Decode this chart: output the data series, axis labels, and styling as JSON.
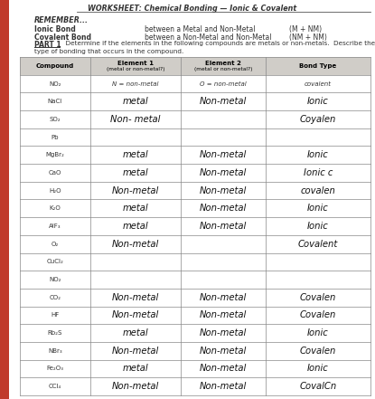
{
  "title": "WORKSHEET: Chemical Bonding — Ionic & Covalent",
  "remember_title": "REMEMBER...",
  "ionic_bond_label": "Ionic Bond",
  "ionic_bond_desc": "between a Metal and Non-Metal",
  "ionic_bond_abbr": "(M + NM)",
  "covalent_bond_label": "Covalent Bond",
  "covalent_bond_desc": "between a Non-Metal and Non-Metal",
  "covalent_bond_abbr": "(NM + NM)",
  "part1_label": "PART 1",
  "part1_rest": "  Determine if the elements in the following compounds are metals or non-metals.  Describe the",
  "part1_line2": "type of bonding that occurs in the compound.",
  "col_headers": [
    "Compound",
    "Element 1\n(metal or non-metal?)",
    "Element 2\n(metal or non-metal?)",
    "Bond Type"
  ],
  "paper_color": "#f5f3ef",
  "red_color": "#c0392b",
  "line_color": "#888888",
  "text_color": "#222222",
  "header_bg": "#d0cdc8",
  "rows": [
    {
      "compound": "NO₂",
      "el1": "N = non-metal",
      "el2": "O = non-metal",
      "bond": "covalent",
      "hw": false
    },
    {
      "compound": "NaCl",
      "el1": "metal",
      "el2": "Non-metal",
      "bond": "Ionic",
      "hw": true
    },
    {
      "compound": "SO₂",
      "el1": "Non- metal",
      "el2": "",
      "bond": "Coyalen",
      "hw": true
    },
    {
      "compound": "Pb",
      "el1": "",
      "el2": "",
      "bond": "",
      "hw": true
    },
    {
      "compound": "MgBr₂",
      "el1": "metal",
      "el2": "Non-metal",
      "bond": "Ionic",
      "hw": true
    },
    {
      "compound": "CaO",
      "el1": "metal",
      "el2": "Non-metal",
      "bond": "Ionic c",
      "hw": true
    },
    {
      "compound": "H₂O",
      "el1": "Non-metal",
      "el2": "Non-metal",
      "bond": "covalen",
      "hw": true
    },
    {
      "compound": "K₂O",
      "el1": "metal",
      "el2": "Non-metal",
      "bond": "Ionic",
      "hw": true
    },
    {
      "compound": "AlF₃",
      "el1": "metal",
      "el2": "Non-metal",
      "bond": "Ionic",
      "hw": true
    },
    {
      "compound": "O₂",
      "el1": "Non-metal",
      "el2": "",
      "bond": "Covalent",
      "hw": true
    },
    {
      "compound": "CuCl₂",
      "el1": "",
      "el2": "",
      "bond": "",
      "hw": true
    },
    {
      "compound": "NO₂",
      "el1": "",
      "el2": "",
      "bond": "",
      "hw": true
    },
    {
      "compound": "CO₂",
      "el1": "Non-metal",
      "el2": "Non-metal",
      "bond": "Covalen",
      "hw": true
    },
    {
      "compound": "HF",
      "el1": "Non-metal",
      "el2": "Non-metal",
      "bond": "Covalen",
      "hw": true
    },
    {
      "compound": "Rb₂S",
      "el1": "metal",
      "el2": "Non-metal",
      "bond": "Ionic",
      "hw": true
    },
    {
      "compound": "NBr₃",
      "el1": "Non-metal",
      "el2": "Non-metal",
      "bond": "Covalen",
      "hw": true
    },
    {
      "compound": "Fe₂O₃",
      "el1": "metal",
      "el2": "Non-metal",
      "bond": "Ionic",
      "hw": true
    },
    {
      "compound": "CCl₄",
      "el1": "Non-metal",
      "el2": "Non-metal",
      "bond": "CovalCn",
      "hw": true
    }
  ]
}
